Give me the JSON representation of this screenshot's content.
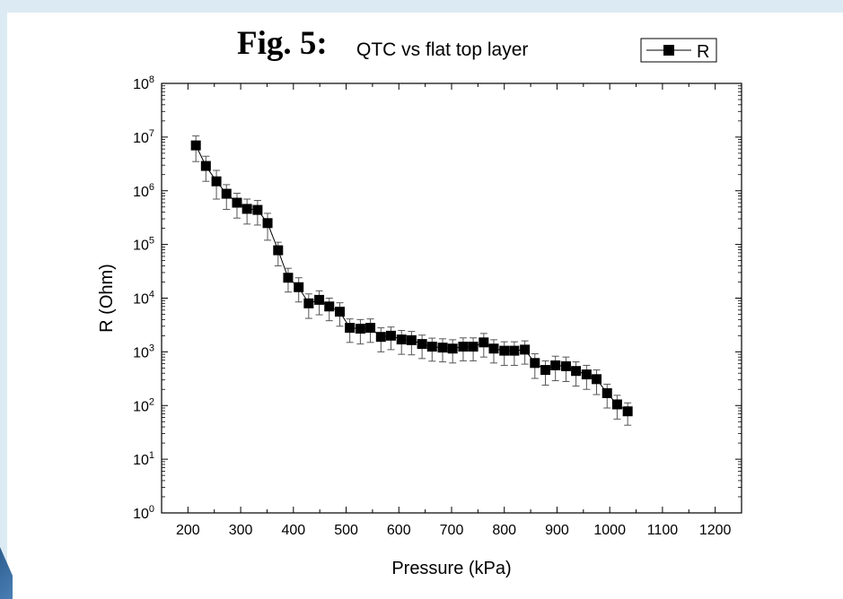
{
  "figure": {
    "title_bold": "Fig. 5:",
    "title_rest": "QTC vs flat top layer"
  },
  "chart_data": {
    "type": "scatter",
    "title": "Fig. 5: QTC vs flat top layer",
    "xlabel": "Pressure (kPa)",
    "ylabel": "R (Ohm)",
    "xlim": [
      150,
      1250
    ],
    "ylim": [
      1,
      100000000
    ],
    "y_scale": "log",
    "x_ticks": [
      200,
      300,
      400,
      500,
      600,
      700,
      800,
      900,
      1000,
      1100,
      1200
    ],
    "y_tick_exponents": [
      0,
      1,
      2,
      3,
      4,
      5,
      6,
      7,
      8
    ],
    "y_tick_base": "10",
    "grid": false,
    "legend": {
      "position": "top-right",
      "entries": [
        "R"
      ]
    },
    "series": [
      {
        "name": "R",
        "marker": "filled-square",
        "line": true,
        "error_bars": true,
        "x": [
          215,
          234,
          254,
          273,
          293,
          312,
          332,
          351,
          371,
          390,
          410,
          429,
          449,
          468,
          488,
          507,
          527,
          546,
          566,
          585,
          605,
          624,
          644,
          663,
          683,
          702,
          722,
          741,
          761,
          780,
          800,
          819,
          839,
          858,
          878,
          897,
          917,
          936,
          956,
          975,
          995,
          1014,
          1034
        ],
        "y": [
          7000000,
          2900000,
          1500000,
          880000,
          600000,
          460000,
          440000,
          250000,
          78000,
          24000,
          16000,
          8000,
          9300,
          7000,
          5600,
          2800,
          2700,
          2800,
          1900,
          2000,
          1700,
          1650,
          1400,
          1250,
          1200,
          1150,
          1250,
          1250,
          1500,
          1150,
          1050,
          1050,
          1100,
          620,
          460,
          560,
          540,
          440,
          380,
          310,
          170,
          105,
          78
        ],
        "y_low": [
          3500000,
          1500000,
          700000,
          450000,
          310000,
          240000,
          230000,
          120000,
          40000,
          13000,
          8500,
          4200,
          4900,
          3800,
          3000,
          1500,
          1400,
          1500,
          1000,
          1100,
          900,
          880,
          750,
          670,
          650,
          620,
          680,
          680,
          800,
          620,
          560,
          560,
          590,
          320,
          240,
          290,
          280,
          230,
          200,
          160,
          90,
          56,
          43
        ],
        "y_high": [
          10500000,
          4400000,
          2400000,
          1300000,
          900000,
          700000,
          660000,
          380000,
          110000,
          36000,
          24000,
          12000,
          13700,
          10000,
          8200,
          4100,
          4000,
          4100,
          2800,
          2900,
          2500,
          2400,
          2050,
          1800,
          1750,
          1680,
          1820,
          1820,
          2200,
          1680,
          1540,
          1540,
          1600,
          920,
          680,
          830,
          800,
          650,
          560,
          460,
          250,
          155,
          112
        ],
        "color": "#000000"
      }
    ]
  }
}
